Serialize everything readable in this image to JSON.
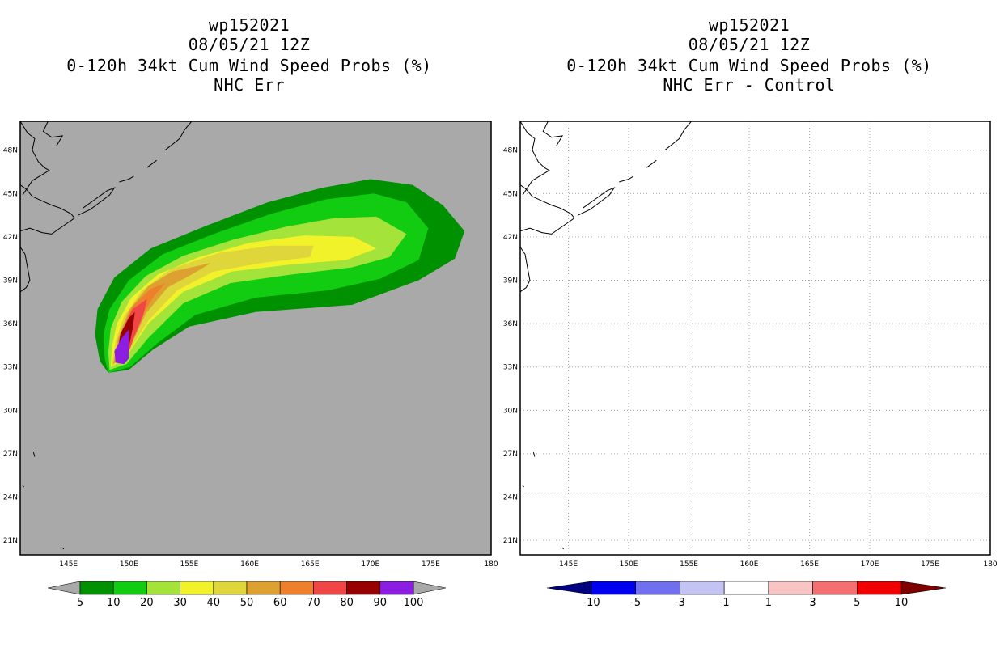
{
  "left_panel": {
    "title_lines": [
      "wp152021",
      "08/05/21 12Z",
      "0-120h 34kt Cum Wind Speed Probs (%)",
      "NHC Err"
    ]
  },
  "right_panel": {
    "title_lines": [
      "wp152021",
      "08/05/21 12Z",
      "0-120h 34kt Cum Wind Speed Probs (%)",
      "NHC Err - Control"
    ]
  },
  "colors": {
    "map_background_left": "#a9a9a9",
    "map_background_right": "#ffffff",
    "grid_line": "#aaaaaa",
    "coastline": "#000000"
  },
  "chart_data": [
    {
      "type": "heatmap",
      "panel": "left",
      "title": "0-120h 34kt Cum Wind Speed Probs (%)",
      "subtitle": "NHC Err",
      "xlim": [
        141,
        180
      ],
      "ylim": [
        20,
        50
      ],
      "x_ticks": [
        145,
        150,
        155,
        160,
        165,
        170,
        175,
        180
      ],
      "x_tick_labels": [
        "145E",
        "150E",
        "155E",
        "160E",
        "165E",
        "170E",
        "175E",
        "180"
      ],
      "y_ticks": [
        21,
        24,
        27,
        30,
        33,
        36,
        39,
        42,
        45,
        48
      ],
      "y_tick_labels": [
        "21N",
        "24N",
        "27N",
        "30N",
        "33N",
        "36N",
        "39N",
        "42N",
        "45N",
        "48N"
      ],
      "grid": false,
      "colorbar": {
        "levels": [
          5,
          10,
          20,
          30,
          40,
          50,
          60,
          70,
          80,
          90,
          100
        ],
        "labels": [
          "5",
          "10",
          "20",
          "30",
          "40",
          "50",
          "60",
          "70",
          "80",
          "90",
          "100"
        ],
        "colors": [
          "#009100",
          "#11cc11",
          "#a3e33a",
          "#f2f22a",
          "#ded63a",
          "#dda131",
          "#ee7f2c",
          "#f14646",
          "#960000",
          "#8b1ee1"
        ],
        "end_colors": [
          "#a9a9a9",
          "#a9a9a9"
        ]
      },
      "contours": [
        {
          "level": 5,
          "color": "#009100",
          "points": [
            [
              148.3,
              32.6
            ],
            [
              147.6,
              33.4
            ],
            [
              147.2,
              35.2
            ],
            [
              147.4,
              37.0
            ],
            [
              148.8,
              39.2
            ],
            [
              151.8,
              41.2
            ],
            [
              156.5,
              42.8
            ],
            [
              161.5,
              44.4
            ],
            [
              166.0,
              45.4
            ],
            [
              170.0,
              46.0
            ],
            [
              173.5,
              45.6
            ],
            [
              176.0,
              44.2
            ],
            [
              177.8,
              42.4
            ],
            [
              177.0,
              40.5
            ],
            [
              174.0,
              39.0
            ],
            [
              168.5,
              37.3
            ],
            [
              160.5,
              36.8
            ],
            [
              155.0,
              35.8
            ],
            [
              152.0,
              34.2
            ],
            [
              150.0,
              32.8
            ]
          ]
        },
        {
          "level": 10,
          "color": "#11cc11",
          "points": [
            [
              148.3,
              32.6
            ],
            [
              148.0,
              33.6
            ],
            [
              147.9,
              35.3
            ],
            [
              148.4,
              37.0
            ],
            [
              150.0,
              39.0
            ],
            [
              152.8,
              40.8
            ],
            [
              157.0,
              42.2
            ],
            [
              161.8,
              43.6
            ],
            [
              166.3,
              44.6
            ],
            [
              170.3,
              45.0
            ],
            [
              173.0,
              44.4
            ],
            [
              174.8,
              42.6
            ],
            [
              174.0,
              40.4
            ],
            [
              170.8,
              39.1
            ],
            [
              166.5,
              38.3
            ],
            [
              160.5,
              37.8
            ],
            [
              155.5,
              36.6
            ],
            [
              152.3,
              34.6
            ],
            [
              150.1,
              33.0
            ]
          ]
        },
        {
          "level": 20,
          "color": "#a3e33a",
          "points": [
            [
              148.4,
              32.8
            ],
            [
              148.3,
              34.0
            ],
            [
              148.5,
              35.7
            ],
            [
              149.4,
              37.5
            ],
            [
              151.4,
              39.3
            ],
            [
              154.5,
              40.7
            ],
            [
              158.6,
              41.8
            ],
            [
              163.0,
              42.7
            ],
            [
              167.0,
              43.3
            ],
            [
              170.5,
              43.4
            ],
            [
              173.0,
              42.2
            ],
            [
              171.6,
              40.6
            ],
            [
              168.5,
              39.9
            ],
            [
              163.5,
              39.4
            ],
            [
              158.4,
              38.8
            ],
            [
              154.5,
              37.4
            ],
            [
              151.6,
              35.0
            ],
            [
              149.8,
              33.2
            ]
          ]
        },
        {
          "level": 30,
          "color": "#f2f22a",
          "points": [
            [
              148.5,
              33.0
            ],
            [
              148.6,
              34.4
            ],
            [
              149.0,
              36.0
            ],
            [
              150.2,
              37.8
            ],
            [
              152.4,
              39.4
            ],
            [
              155.8,
              40.6
            ],
            [
              160.0,
              41.6
            ],
            [
              164.5,
              42.1
            ],
            [
              168.6,
              42.0
            ],
            [
              170.5,
              41.2
            ],
            [
              168.0,
              40.4
            ],
            [
              163.5,
              40.1
            ],
            [
              158.5,
              39.6
            ],
            [
              154.5,
              38.2
            ],
            [
              151.6,
              36.0
            ],
            [
              149.7,
              33.6
            ]
          ]
        },
        {
          "level": 40,
          "color": "#ded63a",
          "points": [
            [
              148.6,
              33.1
            ],
            [
              148.9,
              34.8
            ],
            [
              149.6,
              36.5
            ],
            [
              151.1,
              38.3
            ],
            [
              153.5,
              39.8
            ],
            [
              157.5,
              40.9
            ],
            [
              161.8,
              41.4
            ],
            [
              165.3,
              41.4
            ],
            [
              165.0,
              40.6
            ],
            [
              161.0,
              40.2
            ],
            [
              157.0,
              39.6
            ],
            [
              154.0,
              38.3
            ],
            [
              151.6,
              36.2
            ],
            [
              149.8,
              33.8
            ]
          ]
        },
        {
          "level": 50,
          "color": "#dda131",
          "points": [
            [
              148.7,
              33.2
            ],
            [
              149.1,
              35.0
            ],
            [
              150.0,
              36.9
            ],
            [
              151.6,
              38.6
            ],
            [
              153.6,
              39.6
            ],
            [
              156.8,
              40.2
            ],
            [
              155.2,
              39.4
            ],
            [
              153.2,
              38.5
            ],
            [
              151.4,
              36.7
            ],
            [
              149.9,
              34.0
            ]
          ]
        },
        {
          "level": 60,
          "color": "#ee7f2c",
          "points": [
            [
              148.8,
              33.3
            ],
            [
              149.3,
              35.3
            ],
            [
              150.3,
              37.2
            ],
            [
              151.8,
              38.4
            ],
            [
              153.0,
              38.8
            ],
            [
              152.0,
              37.8
            ],
            [
              150.9,
              36.3
            ],
            [
              150.0,
              34.2
            ]
          ]
        },
        {
          "level": 70,
          "color": "#f14646",
          "points": [
            [
              148.9,
              33.3
            ],
            [
              149.4,
              35.4
            ],
            [
              150.3,
              37.0
            ],
            [
              151.5,
              37.7
            ],
            [
              151.2,
              36.6
            ],
            [
              150.4,
              35.0
            ],
            [
              149.9,
              33.8
            ]
          ]
        },
        {
          "level": 80,
          "color": "#960000",
          "points": [
            [
              148.9,
              33.3
            ],
            [
              149.3,
              35.3
            ],
            [
              150.0,
              36.4
            ],
            [
              150.5,
              36.8
            ],
            [
              150.3,
              35.6
            ],
            [
              149.9,
              34.0
            ]
          ]
        },
        {
          "level": 90,
          "color": "#8b1ee1",
          "points": [
            [
              148.9,
              33.3
            ],
            [
              148.8,
              34.1
            ],
            [
              149.4,
              35.0
            ],
            [
              150.0,
              35.6
            ],
            [
              150.0,
              33.6
            ],
            [
              149.6,
              33.2
            ]
          ]
        }
      ]
    },
    {
      "type": "heatmap",
      "panel": "right",
      "title": "0-120h 34kt Cum Wind Speed Probs (%)",
      "subtitle": "NHC Err - Control",
      "xlim": [
        141,
        180
      ],
      "ylim": [
        20,
        50
      ],
      "x_ticks": [
        145,
        150,
        155,
        160,
        165,
        170,
        175,
        180
      ],
      "x_tick_labels": [
        "145E",
        "150E",
        "155E",
        "160E",
        "165E",
        "170E",
        "175E",
        "180"
      ],
      "y_ticks": [
        21,
        24,
        27,
        30,
        33,
        36,
        39,
        42,
        45,
        48
      ],
      "y_tick_labels": [
        "21N",
        "24N",
        "27N",
        "30N",
        "33N",
        "36N",
        "39N",
        "42N",
        "45N",
        "48N"
      ],
      "grid": true,
      "colorbar": {
        "levels": [
          -10,
          -5,
          -3,
          -1,
          1,
          3,
          5,
          10
        ],
        "labels": [
          "-10",
          "-5",
          "-3",
          "-1",
          "1",
          "3",
          "5",
          "10"
        ],
        "colors": [
          "#0000f0",
          "#7070ee",
          "#c4c4f4",
          "#ffffff",
          "#f8c4c4",
          "#f47070",
          "#f00000"
        ],
        "end_colors": [
          "#000080",
          "#800000"
        ]
      },
      "contours": []
    }
  ]
}
